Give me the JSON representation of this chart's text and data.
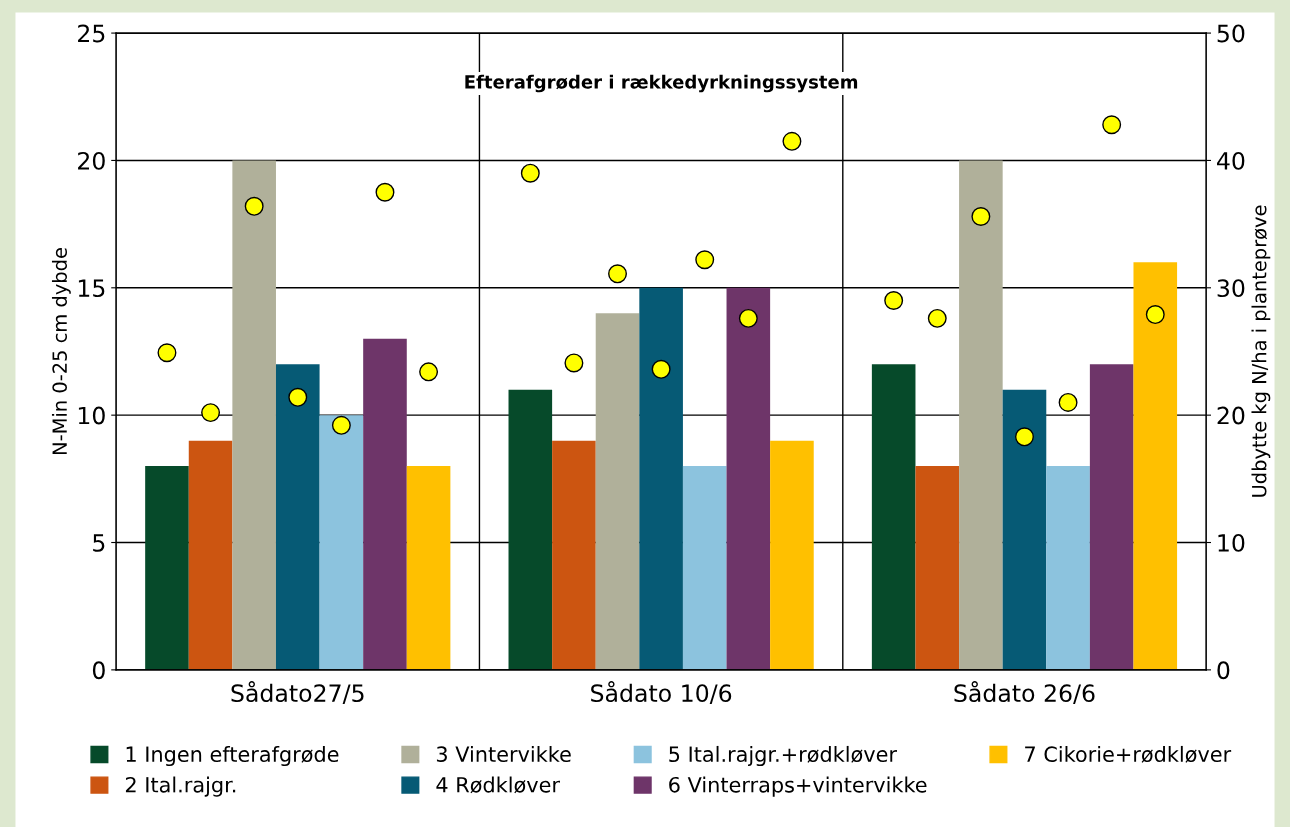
{
  "chart_data": {
    "type": "bar",
    "title": "Efterafgrøder i rækkedyrkningssystem",
    "ylabel": "N-Min 0-25 cm dybde",
    "y2label": "Udbytte kg N/ha i planteprøve",
    "categories": [
      "Sådato27/5",
      "Sådato 10/6",
      "Sådato 26/6"
    ],
    "series": [
      {
        "name": "1 Ingen efterafgrøde",
        "color": "#064a2a",
        "values": [
          8,
          11,
          12
        ]
      },
      {
        "name": "2 Ital.rajgr.",
        "color": "#cc5511",
        "values": [
          9,
          9,
          8
        ]
      },
      {
        "name": "3 Vintervikke",
        "color": "#b0b09a",
        "values": [
          20,
          14,
          20
        ]
      },
      {
        "name": "4 Rødkløver",
        "color": "#065a75",
        "values": [
          12,
          15,
          11
        ]
      },
      {
        "name": "5 Ital.rajgr.+rødkløver",
        "color": "#8cc3de",
        "values": [
          10,
          8,
          8
        ]
      },
      {
        "name": "6 Vinterraps+vintervikke",
        "color": "#6e3569",
        "values": [
          13,
          15,
          12
        ]
      },
      {
        "name": "7 Cikorie+rødkløver",
        "color": "#ffc000",
        "values": [
          8,
          9,
          16
        ]
      },
      {
        "type": "scatter",
        "axis": "y2",
        "color": "#ffff00",
        "marker": "circle",
        "values": [
          24.9,
          39.0,
          29.0
        ]
      },
      {
        "type": "scatter",
        "axis": "y2",
        "color": "#ffff00",
        "marker": "circle",
        "values": [
          20.2,
          24.1,
          27.6
        ]
      },
      {
        "type": "scatter",
        "axis": "y2",
        "color": "#ffff00",
        "marker": "circle",
        "values": [
          36.4,
          31.1,
          35.6
        ]
      },
      {
        "type": "scatter",
        "axis": "y2",
        "color": "#ffff00",
        "marker": "circle",
        "values": [
          21.4,
          23.6,
          18.3
        ]
      },
      {
        "type": "scatter",
        "axis": "y2",
        "color": "#ffff00",
        "marker": "circle",
        "values": [
          19.2,
          32.2,
          21.0
        ]
      },
      {
        "type": "scatter",
        "axis": "y2",
        "color": "#ffff00",
        "marker": "circle",
        "values": [
          37.5,
          27.6,
          42.8
        ]
      },
      {
        "type": "scatter",
        "axis": "y2",
        "color": "#ffff00",
        "marker": "circle",
        "values": [
          23.4,
          41.5,
          27.9
        ]
      }
    ],
    "ylim": [
      0,
      25
    ],
    "yticks": [
      0,
      5,
      10,
      15,
      20,
      25
    ],
    "y2lim": [
      0,
      50
    ],
    "y2ticks": [
      0,
      10,
      20,
      30,
      40,
      50
    ],
    "grid": true,
    "legend": "bottom"
  }
}
